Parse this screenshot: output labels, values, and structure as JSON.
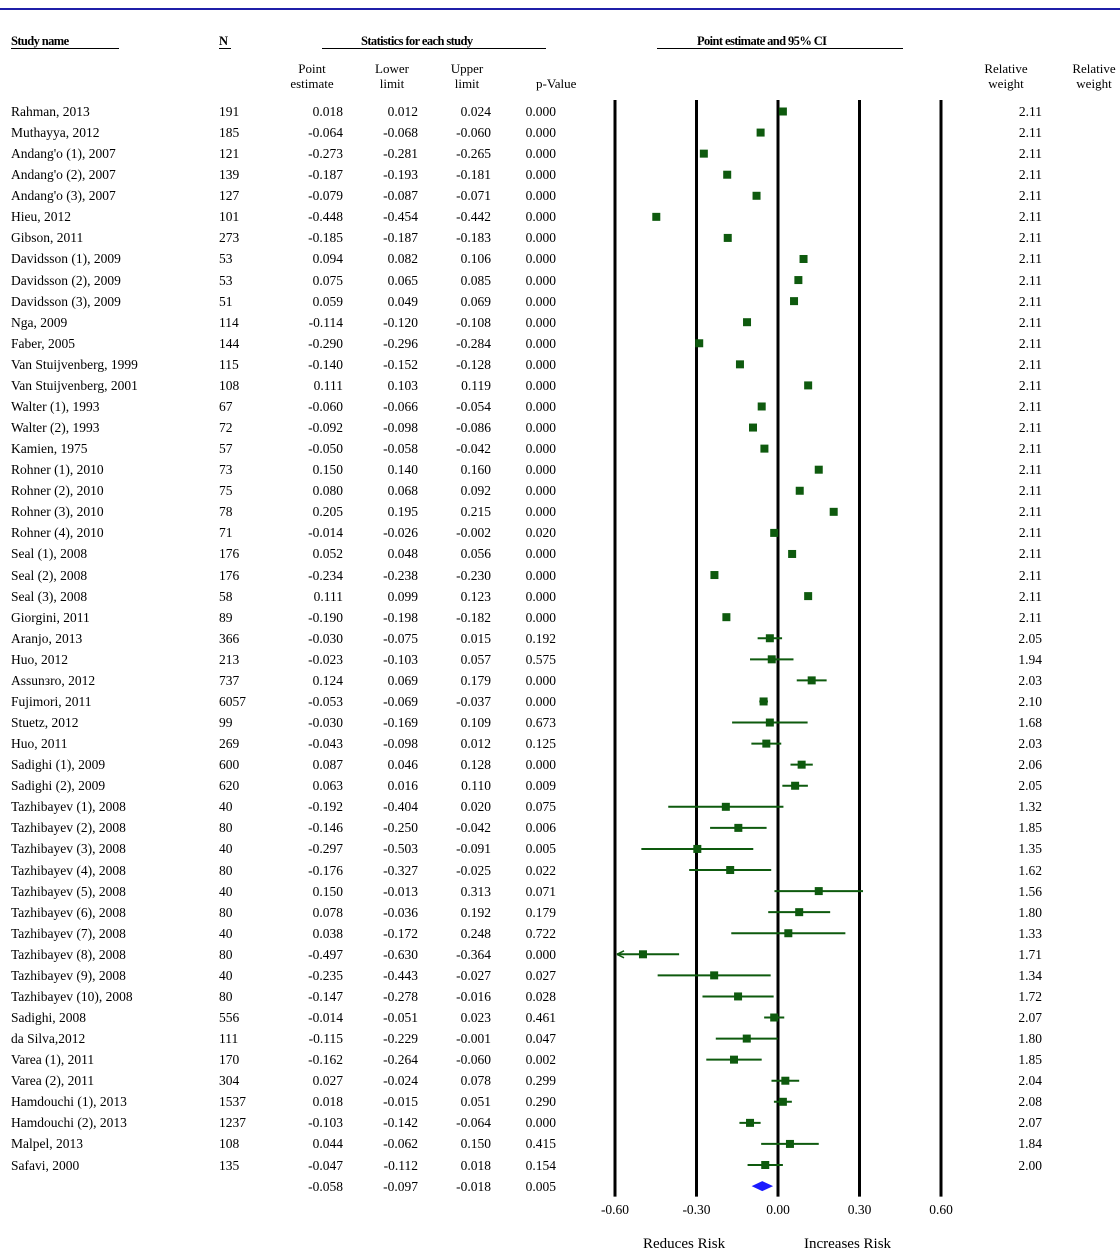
{
  "headers": {
    "study_name": "Study name",
    "n": "N",
    "stats": "Statistics for each study",
    "ci": "Point estimate and 95% CI",
    "point_estimate": "Point\nestimate",
    "lower_limit": "Lower\nlimit",
    "upper_limit": "Upper\nlimit",
    "p_value": "p-Value",
    "relative_weight": "Relative\nweight",
    "relative_weight_2": "Relative\nweight"
  },
  "footer": {
    "reduces": "Reduces Risk",
    "increases": "Increases Risk"
  },
  "colors": {
    "marker": "#0e5a0e",
    "summary": "#1a1aff",
    "rule": "#1f1fa8"
  },
  "chart_data": {
    "type": "forest",
    "xlim": [
      -0.6,
      0.6
    ],
    "xticks": [
      "-0.60",
      "-0.30",
      "0.00",
      "0.30",
      "0.60"
    ],
    "xtick_values": [
      -0.6,
      -0.3,
      0.0,
      0.3,
      0.6
    ],
    "reference_lines": [
      -0.6,
      -0.3,
      0.0,
      0.3,
      0.6
    ],
    "studies": [
      {
        "name": "Rahman, 2013",
        "n": "191",
        "pe": "0.018",
        "ll": "0.012",
        "ul": "0.024",
        "p": "0.000",
        "w": "2.11"
      },
      {
        "name": "Muthayya, 2012",
        "n": "185",
        "pe": "-0.064",
        "ll": "-0.068",
        "ul": "-0.060",
        "p": "0.000",
        "w": "2.11"
      },
      {
        "name": "Andang'o (1), 2007",
        "n": "121",
        "pe": "-0.273",
        "ll": "-0.281",
        "ul": "-0.265",
        "p": "0.000",
        "w": "2.11"
      },
      {
        "name": "Andang'o (2), 2007",
        "n": "139",
        "pe": "-0.187",
        "ll": "-0.193",
        "ul": "-0.181",
        "p": "0.000",
        "w": "2.11"
      },
      {
        "name": "Andang'o (3), 2007",
        "n": "127",
        "pe": "-0.079",
        "ll": "-0.087",
        "ul": "-0.071",
        "p": "0.000",
        "w": "2.11"
      },
      {
        "name": "Hieu, 2012",
        "n": "101",
        "pe": "-0.448",
        "ll": "-0.454",
        "ul": "-0.442",
        "p": "0.000",
        "w": "2.11"
      },
      {
        "name": "Gibson, 2011",
        "n": "273",
        "pe": "-0.185",
        "ll": "-0.187",
        "ul": "-0.183",
        "p": "0.000",
        "w": "2.11"
      },
      {
        "name": "Davidsson (1), 2009",
        "n": "53",
        "pe": "0.094",
        "ll": "0.082",
        "ul": "0.106",
        "p": "0.000",
        "w": "2.11"
      },
      {
        "name": "Davidsson (2), 2009",
        "n": "53",
        "pe": "0.075",
        "ll": "0.065",
        "ul": "0.085",
        "p": "0.000",
        "w": "2.11"
      },
      {
        "name": "Davidsson (3), 2009",
        "n": "51",
        "pe": "0.059",
        "ll": "0.049",
        "ul": "0.069",
        "p": "0.000",
        "w": "2.11"
      },
      {
        "name": "Nga, 2009",
        "n": "114",
        "pe": "-0.114",
        "ll": "-0.120",
        "ul": "-0.108",
        "p": "0.000",
        "w": "2.11"
      },
      {
        "name": "Faber, 2005",
        "n": "144",
        "pe": "-0.290",
        "ll": "-0.296",
        "ul": "-0.284",
        "p": "0.000",
        "w": "2.11"
      },
      {
        "name": "Van Stuijvenberg, 1999",
        "n": "115",
        "pe": "-0.140",
        "ll": "-0.152",
        "ul": "-0.128",
        "p": "0.000",
        "w": "2.11"
      },
      {
        "name": "Van Stuijvenberg, 2001",
        "n": "108",
        "pe": "0.111",
        "ll": "0.103",
        "ul": "0.119",
        "p": "0.000",
        "w": "2.11"
      },
      {
        "name": "Walter (1), 1993",
        "n": "67",
        "pe": "-0.060",
        "ll": "-0.066",
        "ul": "-0.054",
        "p": "0.000",
        "w": "2.11"
      },
      {
        "name": "Walter (2), 1993",
        "n": "72",
        "pe": "-0.092",
        "ll": "-0.098",
        "ul": "-0.086",
        "p": "0.000",
        "w": "2.11"
      },
      {
        "name": "Kamien, 1975",
        "n": "57",
        "pe": "-0.050",
        "ll": "-0.058",
        "ul": "-0.042",
        "p": "0.000",
        "w": "2.11"
      },
      {
        "name": "Rohner (1), 2010",
        "n": "73",
        "pe": "0.150",
        "ll": "0.140",
        "ul": "0.160",
        "p": "0.000",
        "w": "2.11"
      },
      {
        "name": "Rohner (2), 2010",
        "n": "75",
        "pe": "0.080",
        "ll": "0.068",
        "ul": "0.092",
        "p": "0.000",
        "w": "2.11"
      },
      {
        "name": "Rohner (3), 2010",
        "n": "78",
        "pe": "0.205",
        "ll": "0.195",
        "ul": "0.215",
        "p": "0.000",
        "w": "2.11"
      },
      {
        "name": "Rohner (4), 2010",
        "n": "71",
        "pe": "-0.014",
        "ll": "-0.026",
        "ul": "-0.002",
        "p": "0.020",
        "w": "2.11"
      },
      {
        "name": "Seal (1), 2008",
        "n": "176",
        "pe": "0.052",
        "ll": "0.048",
        "ul": "0.056",
        "p": "0.000",
        "w": "2.11"
      },
      {
        "name": "Seal (2), 2008",
        "n": "176",
        "pe": "-0.234",
        "ll": "-0.238",
        "ul": "-0.230",
        "p": "0.000",
        "w": "2.11"
      },
      {
        "name": "Seal (3), 2008",
        "n": "58",
        "pe": "0.111",
        "ll": "0.099",
        "ul": "0.123",
        "p": "0.000",
        "w": "2.11"
      },
      {
        "name": "Giorgini, 2011",
        "n": "89",
        "pe": "-0.190",
        "ll": "-0.198",
        "ul": "-0.182",
        "p": "0.000",
        "w": "2.11"
      },
      {
        "name": "Aranjo, 2013",
        "n": "366",
        "pe": "-0.030",
        "ll": "-0.075",
        "ul": "0.015",
        "p": "0.192",
        "w": "2.05"
      },
      {
        "name": "Huo, 2012",
        "n": "213",
        "pe": "-0.023",
        "ll": "-0.103",
        "ul": "0.057",
        "p": "0.575",
        "w": "1.94"
      },
      {
        "name": "Assunзro, 2012",
        "n": "737",
        "pe": "0.124",
        "ll": "0.069",
        "ul": "0.179",
        "p": "0.000",
        "w": "2.03"
      },
      {
        "name": "Fujimori, 2011",
        "n": "6057",
        "pe": "-0.053",
        "ll": "-0.069",
        "ul": "-0.037",
        "p": "0.000",
        "w": "2.10"
      },
      {
        "name": "Stuetz, 2012",
        "n": "99",
        "pe": "-0.030",
        "ll": "-0.169",
        "ul": "0.109",
        "p": "0.673",
        "w": "1.68"
      },
      {
        "name": "Huo, 2011",
        "n": "269",
        "pe": "-0.043",
        "ll": "-0.098",
        "ul": "0.012",
        "p": "0.125",
        "w": "2.03"
      },
      {
        "name": "Sadighi (1), 2009",
        "n": "600",
        "pe": "0.087",
        "ll": "0.046",
        "ul": "0.128",
        "p": "0.000",
        "w": "2.06"
      },
      {
        "name": "Sadighi (2), 2009",
        "n": "620",
        "pe": "0.063",
        "ll": "0.016",
        "ul": "0.110",
        "p": "0.009",
        "w": "2.05"
      },
      {
        "name": "Tazhibayev (1), 2008",
        "n": "40",
        "pe": "-0.192",
        "ll": "-0.404",
        "ul": "0.020",
        "p": "0.075",
        "w": "1.32"
      },
      {
        "name": "Tazhibayev (2), 2008",
        "n": "80",
        "pe": "-0.146",
        "ll": "-0.250",
        "ul": "-0.042",
        "p": "0.006",
        "w": "1.85"
      },
      {
        "name": "Tazhibayev (3), 2008",
        "n": "40",
        "pe": "-0.297",
        "ll": "-0.503",
        "ul": "-0.091",
        "p": "0.005",
        "w": "1.35"
      },
      {
        "name": "Tazhibayev (4), 2008",
        "n": "80",
        "pe": "-0.176",
        "ll": "-0.327",
        "ul": "-0.025",
        "p": "0.022",
        "w": "1.62"
      },
      {
        "name": "Tazhibayev (5), 2008",
        "n": "40",
        "pe": "0.150",
        "ll": "-0.013",
        "ul": "0.313",
        "p": "0.071",
        "w": "1.56"
      },
      {
        "name": "Tazhibayev (6), 2008",
        "n": "80",
        "pe": "0.078",
        "ll": "-0.036",
        "ul": "0.192",
        "p": "0.179",
        "w": "1.80"
      },
      {
        "name": "Tazhibayev (7), 2008",
        "n": "40",
        "pe": "0.038",
        "ll": "-0.172",
        "ul": "0.248",
        "p": "0.722",
        "w": "1.33"
      },
      {
        "name": "Tazhibayev (8), 2008",
        "n": "80",
        "pe": "-0.497",
        "ll": "-0.630",
        "ul": "-0.364",
        "p": "0.000",
        "w": "1.71"
      },
      {
        "name": "Tazhibayev (9), 2008",
        "n": "40",
        "pe": "-0.235",
        "ll": "-0.443",
        "ul": "-0.027",
        "p": "0.027",
        "w": "1.34"
      },
      {
        "name": "Tazhibayev (10), 2008",
        "n": "80",
        "pe": "-0.147",
        "ll": "-0.278",
        "ul": "-0.016",
        "p": "0.028",
        "w": "1.72"
      },
      {
        "name": "Sadighi, 2008",
        "n": "556",
        "pe": "-0.014",
        "ll": "-0.051",
        "ul": "0.023",
        "p": "0.461",
        "w": "2.07"
      },
      {
        "name": "da Silva,2012",
        "n": "111",
        "pe": "-0.115",
        "ll": "-0.229",
        "ul": "-0.001",
        "p": "0.047",
        "w": "1.80"
      },
      {
        "name": "Varea (1), 2011",
        "n": "170",
        "pe": "-0.162",
        "ll": "-0.264",
        "ul": "-0.060",
        "p": "0.002",
        "w": "1.85"
      },
      {
        "name": "Varea (2), 2011",
        "n": "304",
        "pe": "0.027",
        "ll": "-0.024",
        "ul": "0.078",
        "p": "0.299",
        "w": "2.04"
      },
      {
        "name": "Hamdouchi (1), 2013",
        "n": "1537",
        "pe": "0.018",
        "ll": "-0.015",
        "ul": "0.051",
        "p": "0.290",
        "w": "2.08"
      },
      {
        "name": "Hamdouchi (2), 2013",
        "n": "1237",
        "pe": "-0.103",
        "ll": "-0.142",
        "ul": "-0.064",
        "p": "0.000",
        "w": "2.07"
      },
      {
        "name": "Malpel, 2013",
        "n": "108",
        "pe": "0.044",
        "ll": "-0.062",
        "ul": "0.150",
        "p": "0.415",
        "w": "1.84"
      },
      {
        "name": "Safavi, 2000",
        "n": "135",
        "pe": "-0.047",
        "ll": "-0.112",
        "ul": "0.018",
        "p": "0.154",
        "w": "2.00"
      }
    ],
    "summary": {
      "pe": "-0.058",
      "ll": "-0.097",
      "ul": "-0.018",
      "p": "0.005"
    }
  }
}
